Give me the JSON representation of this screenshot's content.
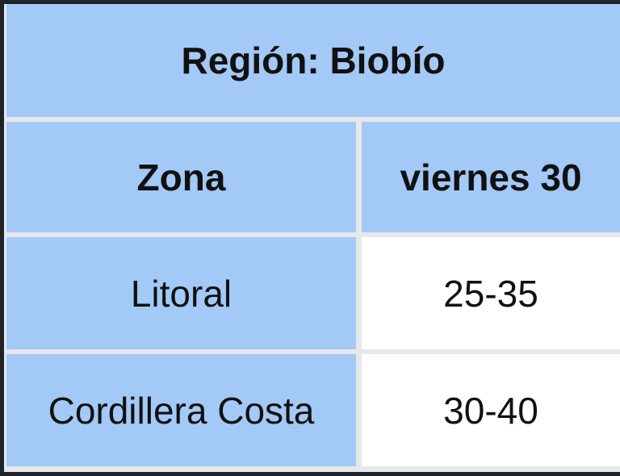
{
  "table": {
    "title": "Región: Biobío",
    "header": [
      "Zona",
      "viernes 30"
    ],
    "rows": [
      [
        "Litoral",
        "25-35"
      ],
      [
        "Cordillera Costa",
        "30-40"
      ]
    ]
  }
}
